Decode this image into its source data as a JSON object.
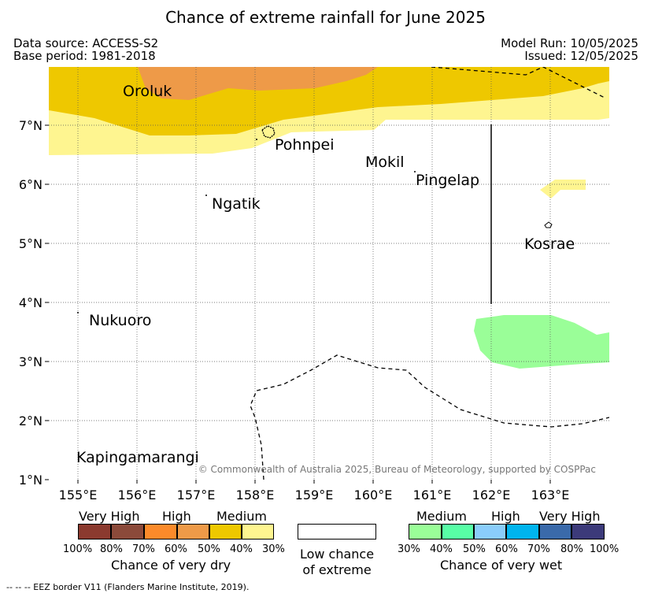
{
  "title": "Chance of extreme rainfall for June 2025",
  "meta": {
    "data_source": "Data source: ACCESS-S2",
    "base_period": "Base period: 1981-2018",
    "model_run": "Model Run: 10/05/2025",
    "issued": "Issued: 12/05/2025"
  },
  "map": {
    "x_ticks": [
      "155°E",
      "156°E",
      "157°E",
      "158°E",
      "159°E",
      "160°E",
      "161°E",
      "162°E",
      "163°E"
    ],
    "y_ticks": [
      "7°N",
      "6°N",
      "5°N",
      "4°N",
      "3°N",
      "2°N",
      "1°N"
    ],
    "places": {
      "oroluk": "Oroluk",
      "pohnpei": "Pohnpei",
      "mokil": "Mokil",
      "pingelap": "Pingelap",
      "ngatik": "Ngatik",
      "kosrae": "Kosrae",
      "nukuoro": "Nukuoro",
      "kapingamarangi": "Kapingamarangi"
    },
    "copyright": "© Commonwealth of Australia 2025, Bureau of Meteorology, supported by COSPPac"
  },
  "legend": {
    "dry": {
      "title": "Chance of very dry",
      "categories": [
        "Very High",
        "High",
        "Medium"
      ],
      "ticks": [
        "100%",
        "80%",
        "70%",
        "60%",
        "50%",
        "40%",
        "30%"
      ],
      "colors": [
        "#8b3a2f",
        "#8b4a3a",
        "#fb8a2a",
        "#ee9a48",
        "#eec800",
        "#fef590"
      ]
    },
    "low": {
      "line1": "Low chance",
      "line2": "of extreme"
    },
    "wet": {
      "title": "Chance of very wet",
      "categories": [
        "Medium",
        "High",
        "Very High"
      ],
      "ticks": [
        "30%",
        "40%",
        "50%",
        "60%",
        "70%",
        "80%",
        "100%"
      ],
      "colors": [
        "#9afe98",
        "#58fea6",
        "#8acdfb",
        "#00b4ee",
        "#3a6aaa",
        "#3c3a7a"
      ]
    }
  },
  "eez_note": "--  --  -- EEZ border V11 (Flanders Marine Institute, 2019)."
}
